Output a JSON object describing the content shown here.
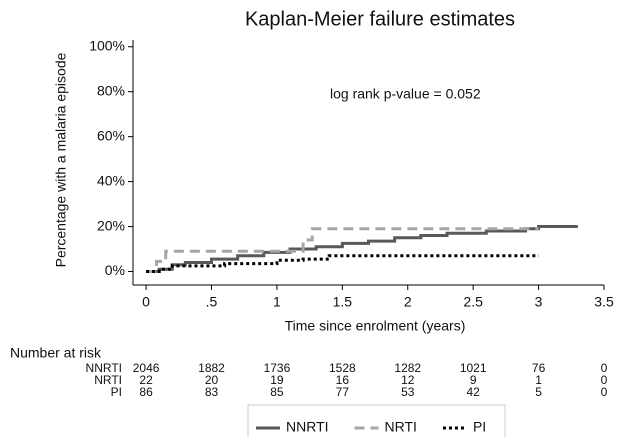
{
  "chart_data": {
    "type": "step-line",
    "title": "Kaplan-Meier failure estimates",
    "xlabel": "Time since enrolment (years)",
    "ylabel": "Percentage with a malaria episode",
    "annotation": "log rank p-value =   0.052",
    "xlim": [
      -0.1,
      3.5
    ],
    "ylim": [
      -6,
      103
    ],
    "xticks": [
      0,
      {
        "value": 0.5,
        "label": ".5"
      },
      1,
      1.5,
      2,
      2.5,
      3,
      3.5
    ],
    "yticks": [
      {
        "value": 0,
        "label": "0%"
      },
      {
        "value": 20,
        "label": "20%"
      },
      {
        "value": 40,
        "label": "40%"
      },
      {
        "value": 60,
        "label": "60%"
      },
      {
        "value": 80,
        "label": "80%"
      },
      {
        "value": 100,
        "label": "100%"
      }
    ],
    "series": [
      {
        "name": "NNRTI",
        "color": "#595959",
        "style": "solid",
        "x": [
          0,
          0.1,
          0.1,
          0.2,
          0.2,
          0.3,
          0.3,
          0.5,
          0.5,
          0.7,
          0.7,
          0.9,
          0.9,
          1.1,
          1.1,
          1.3,
          1.3,
          1.5,
          1.5,
          1.7,
          1.7,
          1.9,
          1.9,
          2.1,
          2.1,
          2.3,
          2.3,
          2.6,
          2.6,
          2.9,
          2.9,
          3.0,
          3.0,
          3.3
        ],
        "values": [
          0,
          0,
          1,
          1,
          3,
          3,
          4,
          4,
          5.5,
          5.5,
          7,
          7,
          8.5,
          8.5,
          10,
          10,
          11,
          11,
          12.5,
          12.5,
          13.5,
          13.5,
          15,
          15,
          16,
          16,
          17,
          17,
          18,
          18,
          19,
          19,
          20,
          20
        ]
      },
      {
        "name": "NRTI",
        "color": "#a6a6a6",
        "style": "dashed",
        "x": [
          0,
          0.08,
          0.08,
          0.15,
          0.15,
          1.2,
          1.2,
          1.27,
          1.27,
          3.0
        ],
        "values": [
          0,
          0,
          4.5,
          4.5,
          9,
          9,
          14,
          14,
          19,
          19
        ]
      },
      {
        "name": "PI",
        "color": "#000000",
        "style": "dotted",
        "x": [
          0,
          0.1,
          0.1,
          0.2,
          0.2,
          0.6,
          0.6,
          1.0,
          1.0,
          1.2,
          1.2,
          1.4,
          1.4,
          3.0
        ],
        "values": [
          0,
          0,
          1,
          1,
          2.5,
          2.5,
          3.5,
          3.5,
          5,
          5,
          5.5,
          5.5,
          7,
          7
        ]
      }
    ],
    "risk_table": {
      "title": "Number at risk",
      "rows": [
        {
          "name": "NNRTI",
          "values": [
            2046,
            1882,
            1736,
            1528,
            1282,
            1021,
            76,
            0
          ]
        },
        {
          "name": "NRTI",
          "values": [
            22,
            20,
            19,
            16,
            12,
            9,
            1,
            0
          ]
        },
        {
          "name": "PI",
          "values": [
            86,
            83,
            85,
            77,
            53,
            42,
            5,
            0
          ]
        }
      ]
    }
  }
}
